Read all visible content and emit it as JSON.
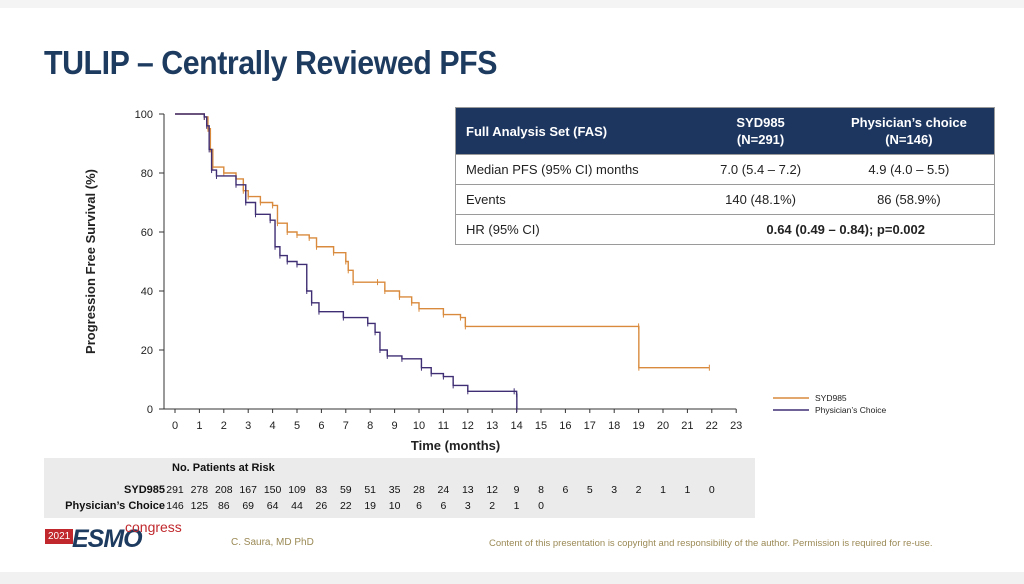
{
  "slide": {
    "title": "TULIP – Centrally Reviewed PFS",
    "author": "C. Saura,  MD PhD",
    "copyright": "Content of this presentation is copyright and responsibility of the author. Permission is required for re-use.",
    "logo": {
      "year": "2021",
      "name": "ESMO",
      "sub": "congress"
    }
  },
  "summary_table": {
    "headers": [
      "Full Analysis Set (FAS)",
      "SYD985\n(N=291)",
      "Physician’s choice\n(N=146)"
    ],
    "rows": [
      {
        "label": "Median PFS (95% CI) months",
        "syd985": "7.0 (5.4 – 7.2)",
        "pc": "4.9 (4.0 – 5.5)"
      },
      {
        "label": "Events",
        "syd985": "140 (48.1%)",
        "pc": "86 (58.9%)"
      },
      {
        "label": "HR (95% CI)",
        "combined": "0.64 (0.49 – 0.84); p=0.002"
      }
    ]
  },
  "risk_table": {
    "title": "No. Patients at Risk",
    "rows": [
      {
        "label": "SYD985",
        "values": [
          291,
          278,
          208,
          167,
          150,
          109,
          83,
          59,
          51,
          35,
          28,
          24,
          13,
          12,
          9,
          8,
          6,
          5,
          3,
          2,
          1,
          1,
          0
        ]
      },
      {
        "label": "Physician’s Choice",
        "values": [
          146,
          125,
          86,
          69,
          64,
          44,
          26,
          22,
          19,
          10,
          6,
          6,
          3,
          2,
          1,
          0
        ]
      }
    ]
  },
  "chart_data": {
    "type": "line",
    "subtype": "kaplan-meier",
    "xlabel": "Time (months)",
    "ylabel": "Progression Free Survival (%)",
    "xlim": [
      0,
      23
    ],
    "ylim": [
      0,
      100
    ],
    "xticks": [
      0,
      1,
      2,
      3,
      4,
      5,
      6,
      7,
      8,
      9,
      10,
      11,
      12,
      13,
      14,
      15,
      16,
      17,
      18,
      19,
      20,
      21,
      22,
      23
    ],
    "yticks": [
      0,
      20,
      40,
      60,
      80,
      100
    ],
    "legend_position": "bottom-right",
    "series": [
      {
        "name": "SYD985",
        "color": "#d98a3c",
        "points": [
          [
            0,
            100
          ],
          [
            1.2,
            99
          ],
          [
            1.35,
            95
          ],
          [
            1.45,
            88
          ],
          [
            1.55,
            82
          ],
          [
            2.0,
            80
          ],
          [
            2.5,
            78
          ],
          [
            2.8,
            74
          ],
          [
            3.0,
            72
          ],
          [
            3.5,
            70
          ],
          [
            4.0,
            69
          ],
          [
            4.2,
            63
          ],
          [
            4.6,
            60
          ],
          [
            5.0,
            59
          ],
          [
            5.5,
            58
          ],
          [
            5.8,
            55
          ],
          [
            6.5,
            53
          ],
          [
            7.0,
            50
          ],
          [
            7.1,
            47
          ],
          [
            7.3,
            43
          ],
          [
            8.3,
            43
          ],
          [
            8.6,
            40
          ],
          [
            9.2,
            38
          ],
          [
            9.7,
            36
          ],
          [
            10.0,
            34
          ],
          [
            11.0,
            32
          ],
          [
            11.7,
            31
          ],
          [
            11.9,
            28
          ],
          [
            19.0,
            28
          ],
          [
            19.01,
            14
          ],
          [
            21.9,
            14
          ]
        ]
      },
      {
        "name": "Physician’s Choice",
        "color": "#3f2e73",
        "points": [
          [
            0,
            100
          ],
          [
            1.2,
            99
          ],
          [
            1.3,
            96
          ],
          [
            1.4,
            88
          ],
          [
            1.5,
            81
          ],
          [
            1.7,
            79
          ],
          [
            2.5,
            76
          ],
          [
            2.9,
            70
          ],
          [
            3.3,
            66
          ],
          [
            3.9,
            64
          ],
          [
            4.1,
            55
          ],
          [
            4.3,
            52
          ],
          [
            4.6,
            50
          ],
          [
            5.0,
            49
          ],
          [
            5.4,
            40
          ],
          [
            5.6,
            36
          ],
          [
            5.9,
            33
          ],
          [
            6.9,
            31
          ],
          [
            7.9,
            29
          ],
          [
            8.2,
            26
          ],
          [
            8.4,
            20
          ],
          [
            8.7,
            18
          ],
          [
            9.3,
            17
          ],
          [
            10.1,
            14
          ],
          [
            10.5,
            12
          ],
          [
            11.0,
            11
          ],
          [
            11.4,
            8
          ],
          [
            12.0,
            6
          ],
          [
            13.9,
            6
          ],
          [
            14.0,
            5
          ],
          [
            14.01,
            0
          ]
        ]
      }
    ]
  }
}
